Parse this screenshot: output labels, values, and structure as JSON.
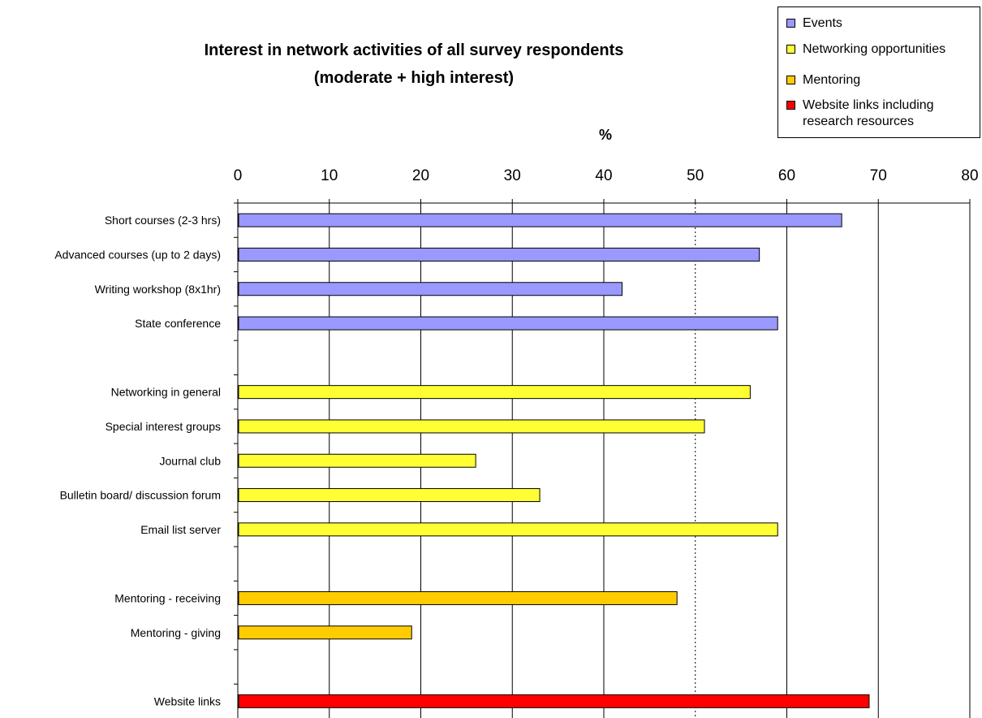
{
  "chart_data": {
    "type": "bar",
    "orientation": "horizontal",
    "title": [
      "Interest in network activities of all survey respondents",
      "(moderate + high interest)"
    ],
    "xlabel": "%",
    "xlim": [
      0,
      80
    ],
    "xticks": [
      "0",
      "10",
      "20",
      "30",
      "40",
      "50",
      "60",
      "70",
      "80"
    ],
    "grid": "vertical",
    "legend_position": "top-right",
    "series": [
      {
        "name": "Events",
        "color": "#9999ff"
      },
      {
        "name": "Networking opportunities",
        "color": "#ffff33"
      },
      {
        "name": "Mentoring",
        "color": "#ffcc00"
      },
      {
        "name": "Website links including research resources",
        "color": "#ff0000"
      }
    ],
    "bars": [
      {
        "label": "Short courses (2-3 hrs)",
        "value": 66,
        "series": 0
      },
      {
        "label": "Advanced courses (up to 2 days)",
        "value": 57,
        "series": 0
      },
      {
        "label": "Writing workshop (8x1hr)",
        "value": 42,
        "series": 0
      },
      {
        "label": "State conference",
        "value": 59,
        "series": 0
      },
      {
        "label": "",
        "value": null,
        "series": null
      },
      {
        "label": "Networking in general",
        "value": 56,
        "series": 1
      },
      {
        "label": "Special interest groups",
        "value": 51,
        "series": 1
      },
      {
        "label": "Journal club",
        "value": 26,
        "series": 1
      },
      {
        "label": "Bulletin board/ discussion forum",
        "value": 33,
        "series": 1
      },
      {
        "label": "Email list server",
        "value": 59,
        "series": 1
      },
      {
        "label": "",
        "value": null,
        "series": null
      },
      {
        "label": "Mentoring - receiving",
        "value": 48,
        "series": 2
      },
      {
        "label": "Mentoring - giving",
        "value": 19,
        "series": 2
      },
      {
        "label": "",
        "value": null,
        "series": null
      },
      {
        "label": "Website links",
        "value": 69,
        "series": 3
      }
    ]
  }
}
